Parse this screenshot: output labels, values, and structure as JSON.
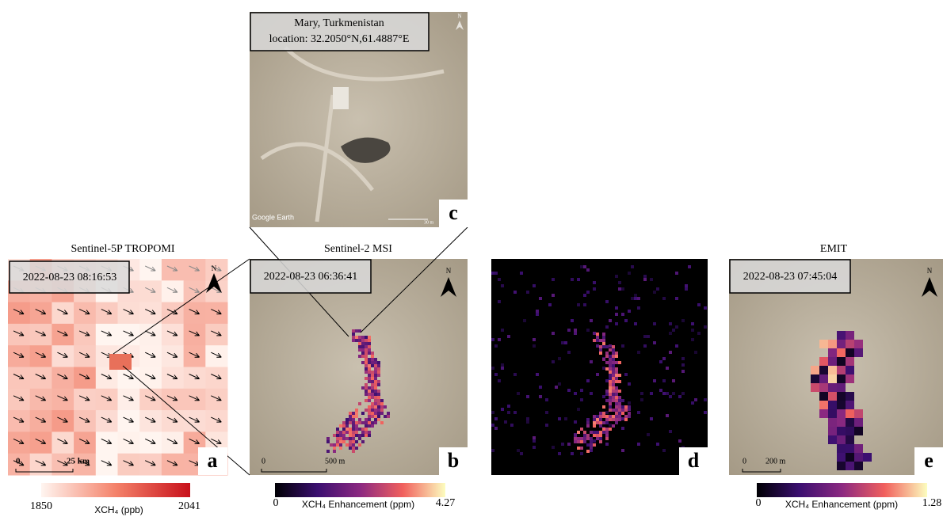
{
  "north": "N",
  "panels": [
    {
      "letter": "a",
      "title": "Sentinel-5P TROPOMI",
      "timestamp": "2022-08-23 08:16:53",
      "scale_bar": {
        "start": 0,
        "end": "25 km"
      },
      "colorbar": {
        "min": 1850,
        "max": 2041,
        "label": "XCH₄ (ppb)"
      }
    },
    {
      "letter": "b",
      "title": "Sentinel-2 MSI",
      "timestamp": "2022-08-23 06:36:41",
      "scale_bar": {
        "start": 0,
        "end": "500 m"
      },
      "colorbar": {
        "min": 0,
        "max": 4.27,
        "label": "XCH₄ Enhancement (ppm)"
      }
    },
    {
      "letter": "c",
      "location": [
        "Mary, Turkmenistan",
        "location: 32.2050°N,61.4887°E"
      ],
      "watermark": "Google Earth",
      "scale_bar": {
        "end": "30 m"
      }
    },
    {
      "letter": "d"
    },
    {
      "letter": "e",
      "title": "EMIT",
      "timestamp": "2022-08-23 07:45:04",
      "scale_bar": {
        "start": 0,
        "end": "200 m"
      },
      "colorbar": {
        "min": 0,
        "max": 1.28,
        "label": "XCH₄ Enhancement (ppm)"
      }
    }
  ]
}
